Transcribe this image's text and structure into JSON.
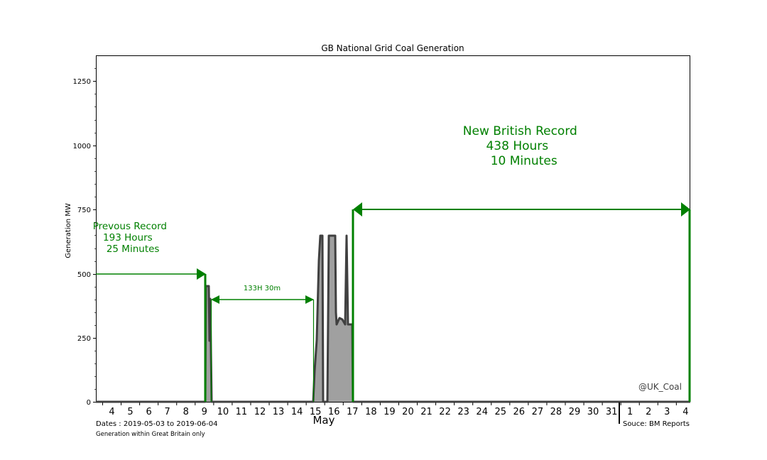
{
  "chart_data": {
    "type": "area",
    "title": "GB National Grid Coal Generation",
    "xlabel": "May",
    "ylabel": "Generation MW",
    "ylim": [
      0,
      1350
    ],
    "yticks": [
      0,
      250,
      500,
      750,
      1000,
      1250
    ],
    "grid": false,
    "x_tick_labels": [
      "4",
      "5",
      "6",
      "7",
      "8",
      "9",
      "10",
      "11",
      "12",
      "13",
      "14",
      "15",
      "16",
      "17",
      "18",
      "19",
      "20",
      "21",
      "22",
      "23",
      "24",
      "25",
      "26",
      "27",
      "28",
      "29",
      "30",
      "31",
      "1",
      "2",
      "3",
      "4"
    ],
    "month_label": "May",
    "month_divider_after": "31",
    "series": [
      {
        "name": "Coal Generation",
        "color_line": "#404040",
        "color_fill": "#a0a0a0",
        "points": [
          {
            "x": "2019-05-03 00:00",
            "y": 0
          },
          {
            "x": "2019-05-09 06:00",
            "y": 0
          },
          {
            "x": "2019-05-09 07:00",
            "y": 450
          },
          {
            "x": "2019-05-09 09:00",
            "y": 450
          },
          {
            "x": "2019-05-09 10:00",
            "y": 240
          },
          {
            "x": "2019-05-09 11:00",
            "y": 400
          },
          {
            "x": "2019-05-09 13:00",
            "y": 0
          },
          {
            "x": "2019-05-15 00:00",
            "y": 0
          },
          {
            "x": "2019-05-15 02:00",
            "y": 120
          },
          {
            "x": "2019-05-15 03:00",
            "y": 240
          },
          {
            "x": "2019-05-15 06:00",
            "y": 550
          },
          {
            "x": "2019-05-15 08:00",
            "y": 650
          },
          {
            "x": "2019-05-15 11:00",
            "y": 650
          },
          {
            "x": "2019-05-15 12:00",
            "y": 0
          },
          {
            "x": "2019-05-15 17:00",
            "y": 0
          },
          {
            "x": "2019-05-15 18:00",
            "y": 650
          },
          {
            "x": "2019-05-16 05:00",
            "y": 650
          },
          {
            "x": "2019-05-16 06:00",
            "y": 350
          },
          {
            "x": "2019-05-16 07:00",
            "y": 300
          },
          {
            "x": "2019-05-16 10:00",
            "y": 330
          },
          {
            "x": "2019-05-16 14:00",
            "y": 320
          },
          {
            "x": "2019-05-16 17:00",
            "y": 300
          },
          {
            "x": "2019-05-16 18:00",
            "y": 650
          },
          {
            "x": "2019-05-16 19:00",
            "y": 300
          },
          {
            "x": "2019-05-17 01:00",
            "y": 300
          },
          {
            "x": "2019-05-17 02:00",
            "y": 0
          },
          {
            "x": "2019-06-04 06:00",
            "y": 0
          }
        ]
      }
    ],
    "annotations": [
      {
        "text": "Prevous Record\n193 Hours\n 25 Minutes",
        "arrow_from": "2019-05-03",
        "arrow_to": "2019-05-09 06:00",
        "arrow_y": 500,
        "color": "#008000"
      },
      {
        "text": "133H 30m",
        "arrow_from": "2019-05-09 13:00",
        "arrow_to": "2019-05-15 00:00",
        "arrow_y": 400,
        "color": "#008000"
      },
      {
        "text": "New British Record\n438 Hours\n 10 Minutes",
        "arrow_from": "2019-05-17 02:00",
        "arrow_to": "2019-06-04 06:00",
        "arrow_y": 750,
        "color": "#008000"
      }
    ],
    "notes": [
      "Dates : 2019-05-03 to 2019-06-04",
      "Generation within Great Britain only",
      "Souce: BM Reports",
      "@UK_Coal"
    ]
  },
  "labels": {
    "title": "GB National Grid Coal Generation",
    "ylabel": "Generation MW",
    "month": "May",
    "dates_note": "Dates : 2019-05-03 to 2019-06-04",
    "scope_note": "Generation within Great Britain only",
    "source_note": "Souce: BM Reports",
    "watermark": "@UK_Coal",
    "prev_record": [
      "Prevous Record",
      "193 Hours",
      " 25 Minutes"
    ],
    "gap_label": "133H 30m",
    "new_record": [
      "New British Record",
      "438 Hours",
      " 10 Minutes"
    ]
  },
  "colors": {
    "annotation_green": "#008000",
    "line_dark": "#404040",
    "fill_grey": "#a0a0a0",
    "axis": "#000000"
  }
}
